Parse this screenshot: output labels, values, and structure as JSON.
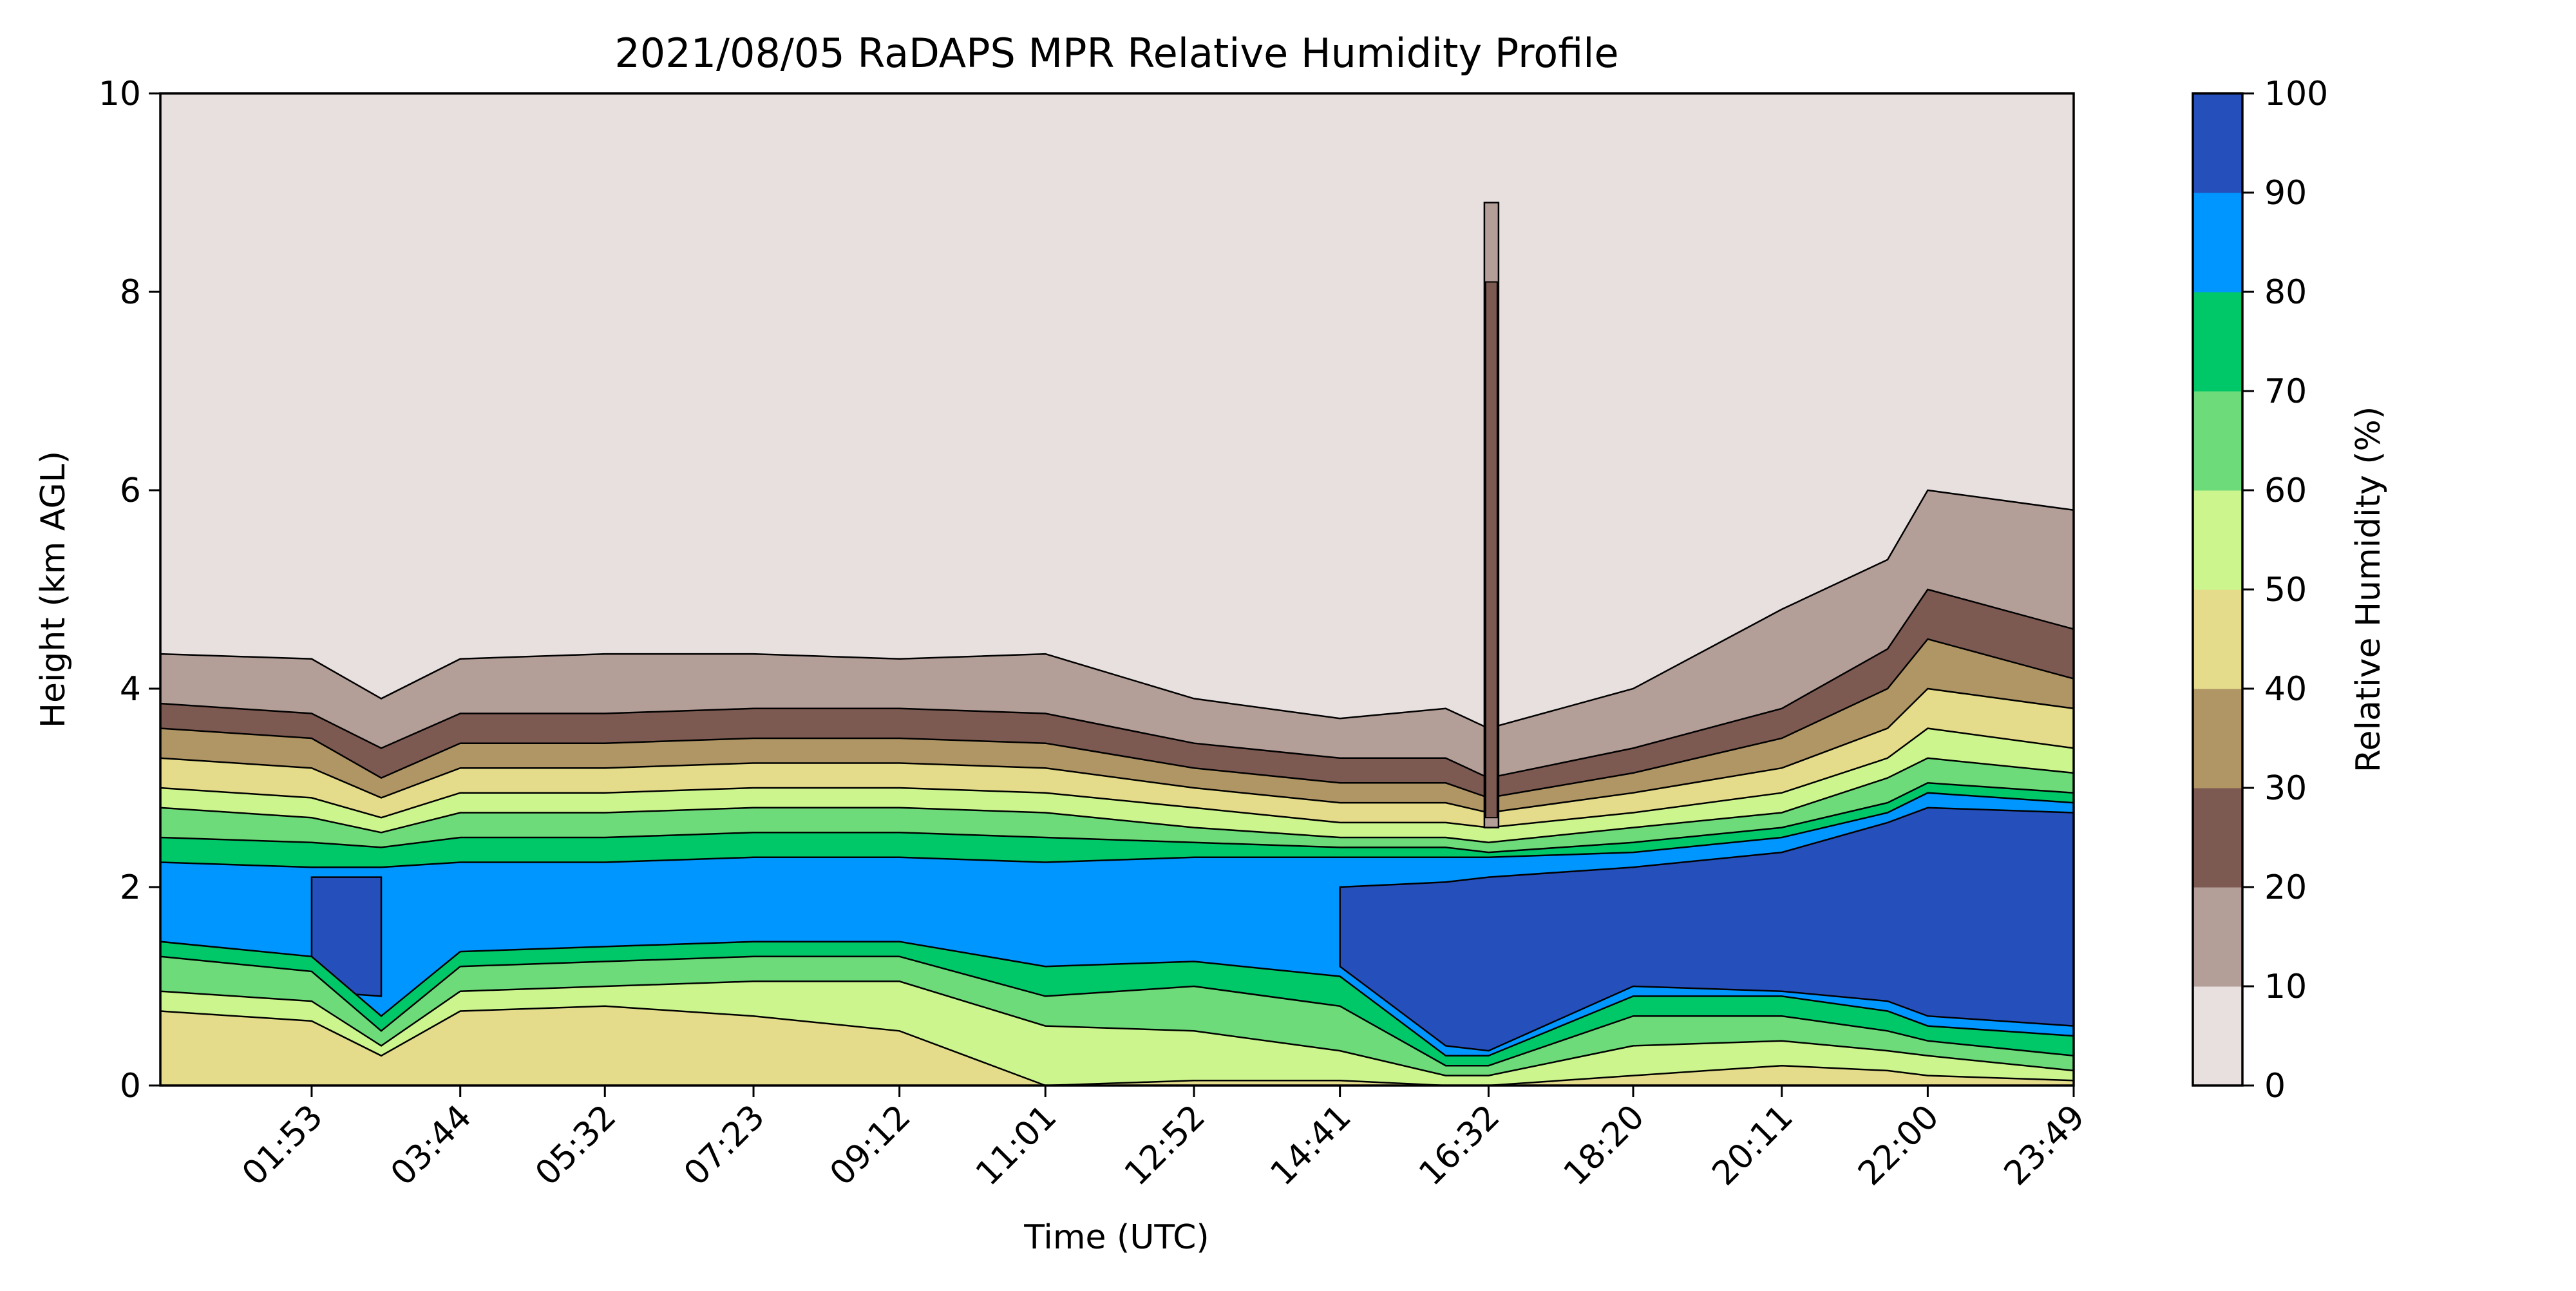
{
  "chart_data": {
    "type": "heatmap",
    "subtype": "filled-contour",
    "title": "2021/08/05 RaDAPS MPR Relative Humidity Profile",
    "xlabel": "Time (UTC)",
    "ylabel": "Height (km AGL)",
    "colorbar_label": "Relative Humidity (%)",
    "x_ticks": [
      "01:53",
      "03:44",
      "05:32",
      "07:23",
      "09:12",
      "11:01",
      "12:52",
      "14:41",
      "16:32",
      "18:20",
      "20:11",
      "22:00",
      "23:49"
    ],
    "y_ticks": [
      "0",
      "2",
      "4",
      "6",
      "8",
      "10"
    ],
    "ylim": [
      0,
      10
    ],
    "xlim": [
      "00:00",
      "23:49"
    ],
    "colorbar_ticks": [
      "0",
      "10",
      "20",
      "30",
      "40",
      "50",
      "60",
      "70",
      "80",
      "90",
      "100"
    ],
    "levels": [
      0,
      10,
      20,
      30,
      40,
      50,
      60,
      70,
      80,
      90,
      100
    ],
    "level_colors": [
      "#e8e0df",
      "#b49e98",
      "#7d5a51",
      "#b09665",
      "#e4dc8a",
      "#cdf58e",
      "#6ddb79",
      "#00c869",
      "#0096ff",
      "#2550bb"
    ],
    "profile_times": [
      "00:00",
      "01:53",
      "02:45",
      "03:44",
      "05:32",
      "07:23",
      "09:12",
      "11:01",
      "12:52",
      "14:41",
      "16:00",
      "16:32",
      "18:20",
      "20:11",
      "21:30",
      "22:00",
      "23:49"
    ],
    "contour_heights_km": {
      "10": [
        4.35,
        4.3,
        3.9,
        4.3,
        4.35,
        4.35,
        4.3,
        4.35,
        3.9,
        3.7,
        3.8,
        3.6,
        4.0,
        4.8,
        5.3,
        6.0,
        5.8
      ],
      "20": [
        3.85,
        3.75,
        3.4,
        3.75,
        3.75,
        3.8,
        3.8,
        3.75,
        3.45,
        3.3,
        3.3,
        3.1,
        3.4,
        3.8,
        4.4,
        5.0,
        4.6
      ],
      "30": [
        3.6,
        3.5,
        3.1,
        3.45,
        3.45,
        3.5,
        3.5,
        3.45,
        3.2,
        3.05,
        3.05,
        2.9,
        3.15,
        3.5,
        4.0,
        4.5,
        4.1
      ],
      "40": [
        3.3,
        3.2,
        2.9,
        3.2,
        3.2,
        3.25,
        3.25,
        3.2,
        3.0,
        2.85,
        2.85,
        2.75,
        2.95,
        3.2,
        3.6,
        4.0,
        3.8
      ],
      "50": [
        3.0,
        2.9,
        2.7,
        2.95,
        2.95,
        3.0,
        3.0,
        2.95,
        2.8,
        2.65,
        2.65,
        2.6,
        2.75,
        2.95,
        3.3,
        3.6,
        3.4
      ],
      "60": [
        2.8,
        2.7,
        2.55,
        2.75,
        2.75,
        2.8,
        2.8,
        2.75,
        2.6,
        2.5,
        2.5,
        2.45,
        2.6,
        2.75,
        3.1,
        3.3,
        3.15
      ],
      "70": [
        2.5,
        2.45,
        2.4,
        2.5,
        2.5,
        2.55,
        2.55,
        2.5,
        2.45,
        2.4,
        2.4,
        2.35,
        2.45,
        2.6,
        2.85,
        3.05,
        2.95
      ],
      "80": [
        2.25,
        2.2,
        2.2,
        2.25,
        2.25,
        2.3,
        2.3,
        2.25,
        2.3,
        2.3,
        2.3,
        2.3,
        2.35,
        2.5,
        2.75,
        2.95,
        2.85
      ],
      "90": [
        null,
        2.1,
        2.1,
        null,
        null,
        null,
        null,
        null,
        null,
        2.0,
        2.05,
        2.1,
        2.2,
        2.35,
        2.65,
        2.8,
        2.75
      ]
    },
    "lower_contour_heights_km": {
      "80": [
        1.45,
        1.3,
        0.7,
        1.35,
        1.4,
        1.45,
        1.45,
        1.2,
        1.25,
        1.1,
        0.3,
        0.3,
        0.9,
        0.9,
        0.75,
        0.6,
        0.5
      ],
      "90": [
        null,
        0.95,
        0.9,
        null,
        null,
        null,
        null,
        null,
        null,
        1.2,
        0.4,
        0.35,
        1.0,
        0.95,
        0.85,
        0.7,
        0.6
      ],
      "70": [
        1.3,
        1.15,
        0.55,
        1.2,
        1.25,
        1.3,
        1.3,
        0.9,
        1.0,
        0.8,
        0.2,
        0.2,
        0.7,
        0.7,
        0.55,
        0.45,
        0.3
      ],
      "60": [
        0.95,
        0.85,
        0.4,
        0.95,
        1.0,
        1.05,
        1.05,
        0.6,
        0.55,
        0.35,
        0.1,
        0.1,
        0.4,
        0.45,
        0.35,
        0.3,
        0.15
      ],
      "50": [
        0.75,
        0.65,
        0.3,
        0.75,
        0.8,
        0.7,
        0.55,
        0.0,
        0.05,
        0.05,
        0.0,
        0.0,
        0.1,
        0.2,
        0.15,
        0.1,
        0.05
      ]
    }
  }
}
